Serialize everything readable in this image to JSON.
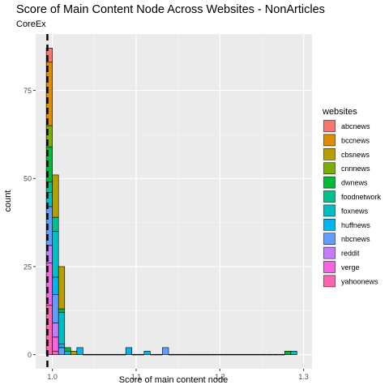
{
  "chart_data": {
    "type": "bar",
    "stacked": true,
    "title": "Score of Main Content Node Across Websites - NonArticles",
    "subtitle": "CoreEx",
    "xlabel": "Score of main content node",
    "ylabel": "count",
    "xlim": [
      0.98,
      1.31
    ],
    "ylim": [
      -4,
      91
    ],
    "x_ticks": [
      1.0,
      1.1,
      1.2,
      1.3
    ],
    "x_tick_labels": [
      "1.0",
      "1.1",
      "1.2",
      "1.3"
    ],
    "y_ticks": [
      0,
      25,
      50,
      75
    ],
    "y_tick_labels": [
      "0",
      "25",
      "50",
      "75"
    ],
    "grid": true,
    "legend_title": "websites",
    "legend_position": "right",
    "vline": {
      "x": 0.994,
      "style": "dashed"
    },
    "bin_width": 0.0073,
    "bins": [
      0.9927,
      1.0,
      1.0073,
      1.0146,
      1.0219,
      1.0292,
      1.0365,
      1.0438,
      1.0511,
      1.0584,
      1.0657,
      1.073,
      1.0803,
      1.0876,
      1.0949,
      1.1022,
      1.1095,
      1.1168,
      1.1241,
      1.1314,
      1.1387,
      1.146,
      1.1533,
      1.1606,
      1.1679,
      1.1752,
      1.1825,
      1.1898,
      1.1971,
      1.2044,
      1.2117,
      1.219,
      1.2263,
      1.2336,
      1.2409,
      1.2482,
      1.2555,
      1.2628,
      1.2701,
      1.2774,
      1.2847
    ],
    "series": [
      {
        "name": "abcnews",
        "color": "#F8766D",
        "values": [
          4,
          0,
          0,
          0,
          0,
          0,
          0,
          0,
          0,
          0,
          0,
          0,
          0,
          0,
          0,
          0,
          0,
          0,
          0,
          0,
          0,
          0,
          0,
          0,
          0,
          0,
          0,
          0,
          0,
          0,
          0,
          0,
          0,
          0,
          0,
          0,
          0,
          0,
          0,
          0,
          0
        ]
      },
      {
        "name": "bccnews",
        "color": "#DE8C00",
        "values": [
          18,
          0,
          0,
          0,
          0,
          0,
          0,
          0,
          0,
          0,
          0,
          0,
          0,
          0,
          0,
          0,
          0,
          0,
          0,
          0,
          0,
          0,
          0,
          0,
          0,
          0,
          0,
          0,
          0,
          0,
          0,
          0,
          0,
          0,
          0,
          0,
          0,
          0,
          0,
          0,
          0
        ]
      },
      {
        "name": "cbsnews",
        "color": "#B79F00",
        "values": [
          0,
          12,
          12,
          0,
          1,
          0,
          0,
          0,
          0,
          0,
          0,
          0,
          0,
          0,
          0,
          0,
          0,
          0,
          0,
          0,
          0,
          0,
          0,
          0,
          0,
          0,
          0,
          0,
          0,
          0,
          0,
          0,
          0,
          0,
          0,
          0,
          0,
          0,
          0,
          0,
          0
        ]
      },
      {
        "name": "cnnnews",
        "color": "#7CAE00",
        "values": [
          6,
          0,
          0,
          0,
          0,
          0,
          0,
          0,
          0,
          0,
          0,
          0,
          0,
          0,
          0,
          0,
          0,
          0,
          0,
          0,
          0,
          0,
          0,
          0,
          0,
          0,
          0,
          0,
          0,
          0,
          0,
          0,
          0,
          0,
          0,
          0,
          0,
          0,
          0,
          0,
          0
        ]
      },
      {
        "name": "dwnews",
        "color": "#00BA38",
        "values": [
          10,
          0,
          1,
          1,
          0,
          0,
          0,
          0,
          0,
          0,
          0,
          0,
          0,
          0,
          0,
          0,
          0,
          0,
          0,
          0,
          0,
          0,
          0,
          0,
          0,
          0,
          0,
          0,
          0,
          0,
          0,
          0,
          0,
          0,
          0,
          0,
          0,
          0,
          0,
          1,
          0
        ]
      },
      {
        "name": "foodnetwork",
        "color": "#00C08B",
        "values": [
          3,
          4,
          0,
          0,
          0,
          0,
          0,
          0,
          0,
          0,
          0,
          0,
          0,
          0,
          0,
          0,
          0,
          0,
          0,
          0,
          0,
          0,
          0,
          0,
          0,
          0,
          0,
          0,
          0,
          0,
          0,
          0,
          0,
          0,
          0,
          0,
          0,
          0,
          0,
          0,
          0
        ]
      },
      {
        "name": "foxnews",
        "color": "#00BFC4",
        "values": [
          4,
          13,
          9,
          1,
          0,
          0,
          0,
          0,
          0,
          0,
          0,
          0,
          0,
          0,
          0,
          0,
          0,
          0,
          0,
          0,
          0,
          0,
          0,
          0,
          0,
          0,
          0,
          0,
          0,
          0,
          0,
          0,
          0,
          0,
          0,
          0,
          0,
          0,
          0,
          0,
          1
        ]
      },
      {
        "name": "huffnews",
        "color": "#00B4F0",
        "values": [
          0,
          5,
          1,
          0,
          0,
          2,
          0,
          0,
          0,
          0,
          0,
          0,
          0,
          2,
          0,
          0,
          1,
          0,
          0,
          0,
          0,
          0,
          0,
          0,
          0,
          0,
          0,
          0,
          0,
          0,
          0,
          0,
          0,
          0,
          0,
          0,
          0,
          0,
          0,
          0,
          0
        ]
      },
      {
        "name": "nbcnews",
        "color": "#619CFF",
        "values": [
          11,
          8,
          2,
          0,
          0,
          0,
          0,
          0,
          0,
          0,
          0,
          0,
          0,
          0,
          0,
          0,
          0,
          0,
          0,
          2,
          0,
          0,
          0,
          0,
          0,
          0,
          0,
          0,
          0,
          0,
          0,
          0,
          0,
          0,
          0,
          0,
          0,
          0,
          0,
          0,
          0
        ]
      },
      {
        "name": "reddit",
        "color": "#C77CFF",
        "values": [
          5,
          4,
          0,
          0,
          0,
          0,
          0,
          0,
          0,
          0,
          0,
          0,
          0,
          0,
          0,
          0,
          0,
          0,
          0,
          0,
          0,
          0,
          0,
          0,
          0,
          0,
          0,
          0,
          0,
          0,
          0,
          0,
          0,
          0,
          0,
          0,
          0,
          0,
          0,
          0,
          0
        ]
      },
      {
        "name": "verge",
        "color": "#F564E3",
        "values": [
          12,
          4,
          0,
          0,
          0,
          0,
          0,
          0,
          0,
          0,
          0,
          0,
          0,
          0,
          0,
          0,
          0,
          0,
          0,
          0,
          0,
          0,
          0,
          0,
          0,
          0,
          0,
          0,
          0,
          0,
          0,
          0,
          0,
          0,
          0,
          0,
          0,
          0,
          0,
          0,
          0
        ]
      },
      {
        "name": "yahoonews",
        "color": "#FF64B0",
        "values": [
          14,
          1,
          0,
          0,
          0,
          0,
          0,
          0,
          0,
          0,
          0,
          0,
          0,
          0,
          0,
          0,
          0,
          0,
          0,
          0,
          0,
          0,
          0,
          0,
          0,
          0,
          0,
          0,
          0,
          0,
          0,
          0,
          0,
          0,
          0,
          0,
          0,
          0,
          0,
          0,
          0
        ]
      }
    ]
  }
}
